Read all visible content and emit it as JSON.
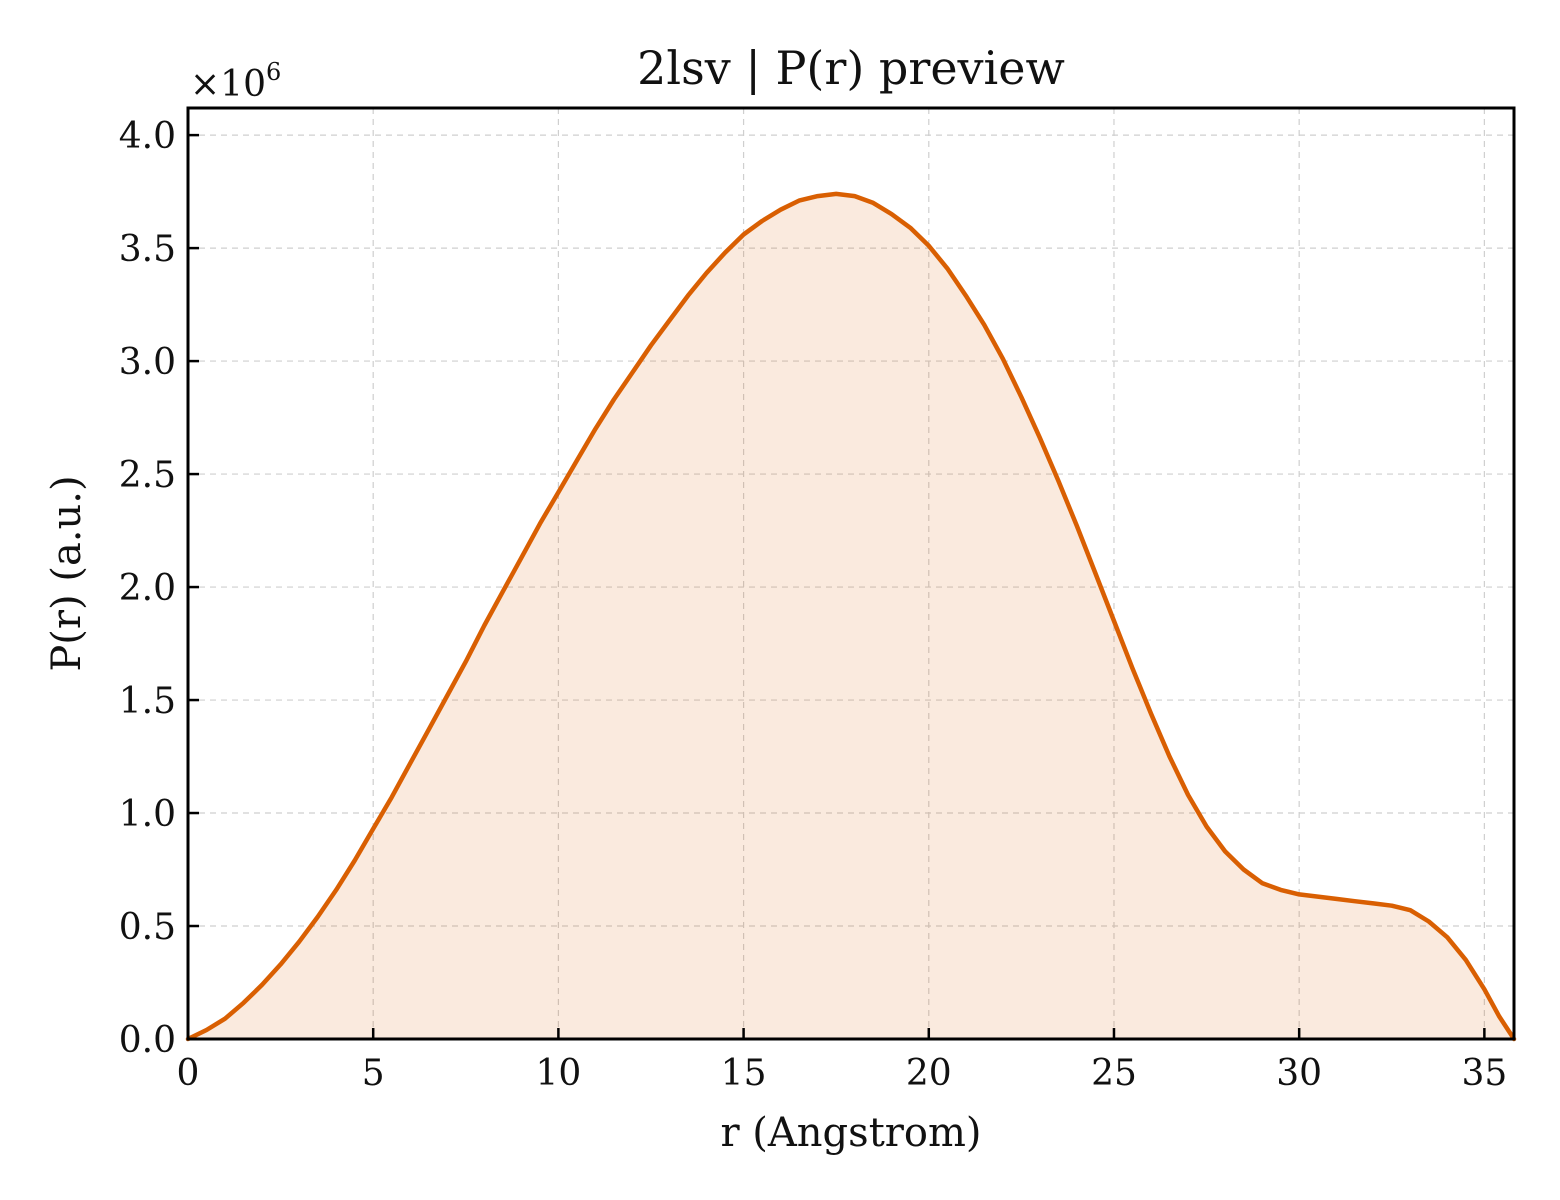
{
  "chart_data": {
    "type": "area",
    "title": "2lsv | P(r) preview",
    "xlabel": "r (Angstrom)",
    "ylabel": "P(r) (a.u.)",
    "y_offset_label": {
      "base": "×10",
      "exponent": "6"
    },
    "xlim": [
      0,
      35.8
    ],
    "ylim": [
      0,
      4.12
    ],
    "y_scale_factor": 1000000,
    "x_ticks": [
      0,
      5,
      10,
      15,
      20,
      25,
      30,
      35
    ],
    "x_tick_labels": [
      "0",
      "5",
      "10",
      "15",
      "20",
      "25",
      "30",
      "35"
    ],
    "y_ticks": [
      0,
      0.5,
      1.0,
      1.5,
      2.0,
      2.5,
      3.0,
      3.5,
      4.0
    ],
    "y_tick_labels": [
      "0.0",
      "0.5",
      "1.0",
      "1.5",
      "2.0",
      "2.5",
      "3.0",
      "3.5",
      "4.0"
    ],
    "grid": true,
    "line_color": "#d95f02",
    "fill_color": "#d95f02",
    "fill_opacity": 0.13,
    "series": [
      {
        "x": [
          0,
          0.5,
          1,
          1.5,
          2,
          2.5,
          3,
          3.5,
          4,
          4.5,
          5,
          5.5,
          6,
          6.5,
          7,
          7.5,
          8,
          8.5,
          9,
          9.5,
          10,
          10.5,
          11,
          11.5,
          12,
          12.5,
          13,
          13.5,
          14,
          14.5,
          15,
          15.5,
          16,
          16.5,
          17,
          17.5,
          18,
          18.5,
          19,
          19.5,
          20,
          20.5,
          21,
          21.5,
          22,
          22.5,
          23,
          23.5,
          24,
          24.5,
          25,
          25.5,
          26,
          26.5,
          27,
          27.5,
          28,
          28.5,
          29,
          29.5,
          30,
          30.5,
          31,
          31.5,
          32,
          32.5,
          33,
          33.5,
          34,
          34.5,
          35,
          35.4,
          35.8
        ],
        "y": [
          0.0,
          0.04,
          0.09,
          0.16,
          0.24,
          0.33,
          0.43,
          0.54,
          0.66,
          0.79,
          0.93,
          1.07,
          1.22,
          1.37,
          1.52,
          1.67,
          1.83,
          1.98,
          2.13,
          2.28,
          2.42,
          2.56,
          2.7,
          2.83,
          2.95,
          3.07,
          3.18,
          3.29,
          3.39,
          3.48,
          3.56,
          3.62,
          3.67,
          3.71,
          3.73,
          3.74,
          3.73,
          3.7,
          3.65,
          3.59,
          3.51,
          3.41,
          3.29,
          3.16,
          3.01,
          2.84,
          2.66,
          2.47,
          2.27,
          2.06,
          1.85,
          1.64,
          1.44,
          1.25,
          1.08,
          0.94,
          0.83,
          0.75,
          0.69,
          0.66,
          0.64,
          0.63,
          0.62,
          0.61,
          0.6,
          0.59,
          0.57,
          0.52,
          0.45,
          0.35,
          0.22,
          0.1,
          0.0
        ]
      }
    ]
  }
}
